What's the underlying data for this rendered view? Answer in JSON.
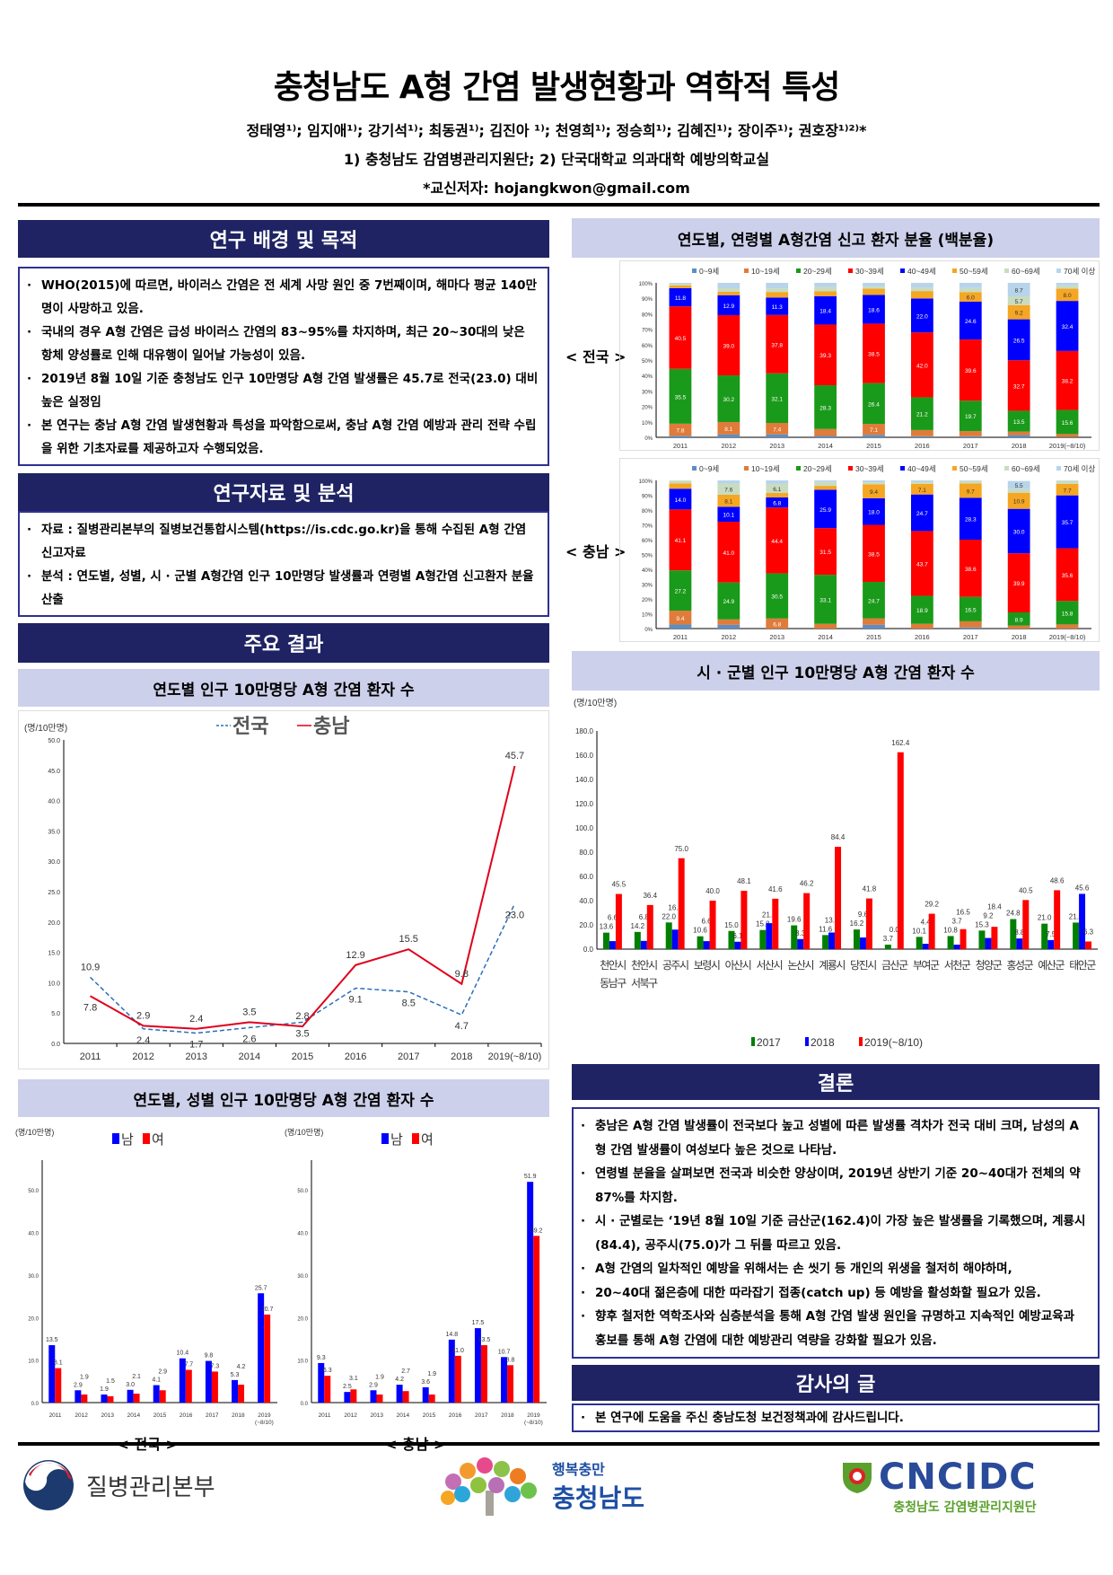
{
  "header": {
    "title": "충청남도 A형 간염 발생현황과 역학적 특성",
    "authors": "정태영¹⁾; 임지애¹⁾; 강기석¹⁾; 최동권¹⁾; 김진아 ¹⁾; 천영희¹⁾; 정승희¹⁾; 김혜진¹⁾; 장이주¹⁾; 권호장¹⁾²⁾*",
    "affiliations": "1) 충청남도 감염병관리지원단; 2) 단국대학교 의과대학 예방의학교실",
    "corresponding": "*교신저자: hojangkwon@gmail.com"
  },
  "sections": {
    "background": {
      "title": "연구 배경 및 목적",
      "items": [
        "WHO(2015)에 따르면, 바이러스 간염은 전 세계 사망 원인 중 7번째이며, 해마다 평균 140만명이 사망하고 있음.",
        "국내의 경우 A형 간염은 급성 바이러스 간염의 83~95%를 차지하며, 최근 20~30대의 낮은 항체 양성률로 인해 대유행이 일어날 가능성이 있음.",
        "2019년 8월 10일 기준 충청남도 인구 10만명당 A형 간염 발생률은 45.7로 전국(23.0) 대비 높은 실정임",
        "본 연구는 충남 A형 간염 발생현황과 특성을 파악함으로써, 충남 A형 간염 예방과 관리 전략 수립을 위한 기초자료를 제공하고자 수행되었음."
      ]
    },
    "methods": {
      "title": "연구자료 및 분석",
      "items": [
        "자료 : 질병관리본부의 질병보건통합시스템(https://is.cdc.go.kr)을 통해 수집된 A형 간염 신고자료",
        "분석 : 연도별, 성별, 시 · 군별 A형간염 인구 10만명당 발생률과 연령별 A형간염 신고환자 분율 산출"
      ]
    },
    "results": {
      "title": "주요 결과"
    },
    "conclusion": {
      "title": "결론",
      "items": [
        "충남은 A형 간염 발생률이 전국보다 높고 성별에 따른 발생률 격차가 전국 대비 크며, 남성의 A형 간염 발생률이 여성보다 높은 것으로 나타남.",
        "연령별 분율을 살펴보면 전국과 비슷한 양상이며, 2019년 상반기 기준 20~40대가 전체의 약 87%를 차지함.",
        "시 · 군별로는 ‘19년 8월 10일 기준 금산군(162.4)이 가장 높은 발생률을 기록했으며, 계룡시(84.4), 공주시(75.0)가 그 뒤를 따르고 있음.",
        "A형 간염의 일차적인 예방을 위해서는 손 씻기 등 개인의 위생을 철저히 해야하며,",
        "20~40대 젊은층에 대한 따라잡기 접종(catch up) 등 예방을 활성화할 필요가 있음.",
        "향후 철저한 역학조사와 심층분석을 통해 A형 간염 발생 원인을 규명하고 지속적인 예방교육과 홍보를 통해 A형 간염에 대한 예방관리 역량을 강화할 필요가 있음."
      ]
    },
    "thanks": {
      "title": "감사의 글",
      "items": [
        "본 연구에 도움을 주신 충남도청 보건정책과에 감사드립니다."
      ]
    }
  },
  "colors": {
    "navy": "#1f2363",
    "band": "#cdd0ea",
    "border": "#2e3192"
  },
  "footer": {
    "logos": [
      {
        "name": "질병관리본부"
      },
      {
        "slogan": "행복충만",
        "name": "충청남도"
      },
      {
        "name": "CNCIDC",
        "sub": "충청남도 감염병관리지원단"
      }
    ]
  },
  "chart_data": [
    {
      "id": "age",
      "type": "bar",
      "stacked": true,
      "title": "연도별, 연령별 A형간염 신고 환자 분율 (백분율)",
      "categories": [
        "2011",
        "2012",
        "2013",
        "2014",
        "2015",
        "2016",
        "2017",
        "2018",
        "2019(~8/10)"
      ],
      "ylim": [
        0,
        100
      ],
      "yticks": [
        "0%",
        "10%",
        "20%",
        "30%",
        "40%",
        "50%",
        "60%",
        "70%",
        "80%",
        "90%",
        "100%"
      ],
      "legend": [
        "0~9세",
        "10~19세",
        "20~29세",
        "30~39세",
        "40~49세",
        "50~59세",
        "60~69세",
        "70세 이상"
      ],
      "colors": [
        "#5b8fc7",
        "#e07b39",
        "#1a9a1a",
        "#ff0000",
        "#0000ff",
        "#f5a623",
        "#c9dcc0",
        "#b8d4ea"
      ],
      "panels": [
        {
          "label": "< 전국 >",
          "series": [
            [
              1.0,
              7.8,
              35.5,
              40.5,
              11.8,
              1.8,
              0.9,
              0.7
            ],
            [
              1.8,
              8.1,
              30.2,
              39.0,
              12.9,
              2.2,
              2.3,
              3.5
            ],
            [
              1.9,
              7.4,
              32.1,
              37.8,
              11.3,
              3.6,
              2.3,
              3.6
            ],
            [
              0.9,
              4.5,
              28.3,
              39.3,
              18.4,
              3.1,
              2.8,
              2.7
            ],
            [
              1.6,
              7.1,
              26.4,
              38.5,
              18.6,
              4.0,
              1.4,
              2.4
            ],
            [
              0.7,
              4.0,
              21.2,
              42.0,
              22.0,
              4.8,
              2.2,
              3.1
            ],
            [
              0.7,
              3.3,
              19.7,
              39.6,
              24.6,
              6.0,
              2.8,
              3.3
            ],
            [
              1.4,
              2.3,
              13.5,
              32.7,
              26.5,
              9.2,
              5.7,
              8.7
            ],
            [
              0.2,
              1.9,
              15.6,
              38.2,
              32.4,
              8.0,
              2.1,
              1.6
            ]
          ]
        },
        {
          "label": "< 충남 >",
          "series": [
            [
              2.7,
              9.4,
              27.2,
              41.1,
              14.0,
              3.6,
              1.9,
              0.0
            ],
            [
              2.5,
              3.7,
              24.9,
              41.0,
              10.1,
              8.1,
              7.6,
              2.1
            ],
            [
              0.0,
              6.8,
              30.5,
              44.4,
              6.8,
              3.0,
              6.1,
              2.4
            ],
            [
              0.0,
              3.2,
              33.1,
              31.5,
              25.9,
              2.6,
              2.7,
              1.0
            ],
            [
              2.5,
              4.3,
              24.7,
              38.5,
              18.0,
              9.4,
              1.3,
              1.3
            ],
            [
              0.0,
              3.2,
              18.9,
              43.7,
              24.7,
              7.1,
              1.5,
              0.9
            ],
            [
              0.8,
              4.1,
              16.5,
              38.6,
              28.3,
              9.7,
              1.6,
              0.4
            ],
            [
              0.0,
              2.0,
              8.9,
              39.9,
              30.0,
              10.9,
              2.4,
              5.5
            ],
            [
              0.0,
              2.8,
              15.8,
              35.6,
              35.7,
              7.7,
              2.2,
              0.2
            ]
          ]
        }
      ]
    },
    {
      "id": "trend",
      "type": "line",
      "title": "연도별 인구 10만명당 A형 간염 환자 수",
      "ylabel": "(명/10만명)",
      "categories": [
        "2011",
        "2012",
        "2013",
        "2014",
        "2015",
        "2016",
        "2017",
        "2018",
        "2019(~8/10)"
      ],
      "ylim": [
        0,
        50
      ],
      "yticks": [
        "0.0",
        "5.0",
        "10.0",
        "15.0",
        "20.0",
        "25.0",
        "30.0",
        "35.0",
        "40.0",
        "45.0",
        "50.0"
      ],
      "series": [
        {
          "name": "전국",
          "color": "#2a6ebb",
          "dashed": true,
          "values": [
            10.9,
            2.4,
            1.7,
            2.6,
            3.5,
            9.1,
            8.5,
            4.7,
            23.0
          ]
        },
        {
          "name": "충남",
          "color": "#e0001b",
          "dashed": false,
          "values": [
            7.8,
            2.9,
            2.4,
            3.5,
            2.8,
            12.9,
            15.5,
            9.8,
            45.7
          ]
        }
      ]
    },
    {
      "id": "city",
      "type": "bar",
      "title": "시 · 군별 인구 10만명당 A형 간염 환자 수",
      "ylabel": "(명/10만명)",
      "categories": [
        "천안시 동남구",
        "천안시 서북구",
        "공주시",
        "보령시",
        "아산시",
        "서산시",
        "논산시",
        "계룡시",
        "당진시",
        "금산군",
        "부여군",
        "서천군",
        "청양군",
        "홍성군",
        "예산군",
        "태안군"
      ],
      "ylim": [
        0,
        180
      ],
      "yticks": [
        "0.0",
        "20.0",
        "40.0",
        "60.0",
        "80.0",
        "100.0",
        "120.0",
        "140.0",
        "160.0",
        "180.0"
      ],
      "series": [
        {
          "name": "2017",
          "color": "#008000",
          "values": [
            13.6,
            14.2,
            22.0,
            10.6,
            15.0,
            15.8,
            19.6,
            11.6,
            16.2,
            3.7,
            10.1,
            10.8,
            15.3,
            24.8,
            21.0,
            21.9
          ]
        },
        {
          "name": "2018",
          "color": "#0000ff",
          "values": [
            6.6,
            6.8,
            16.1,
            6.6,
            6.1,
            21.4,
            8.3,
            13.7,
            9.6,
            0.0,
            4.4,
            3.7,
            9.2,
            8.8,
            7.5,
            45.6
          ]
        },
        {
          "name": "2019(~8/10)",
          "color": "#ff0000",
          "values": [
            45.5,
            36.4,
            75.0,
            40.0,
            48.1,
            41.6,
            46.2,
            84.4,
            41.8,
            162.4,
            29.2,
            16.5,
            18.4,
            40.5,
            48.6,
            6.3
          ]
        }
      ]
    },
    {
      "id": "sex",
      "type": "bar",
      "title": "연도별, 성별 인구 10만명당 A형 간염 환자 수",
      "ylabel": "(명/10만명)",
      "categories": [
        "2011",
        "2012",
        "2013",
        "2014",
        "2015",
        "2016",
        "2017",
        "2018",
        "2019(~8/10)"
      ],
      "ylim": [
        0,
        57
      ],
      "yticks": [
        "0.0",
        "10.0",
        "20.0",
        "30.0",
        "40.0",
        "50.0"
      ],
      "legend": [
        "남",
        "여"
      ],
      "colors": [
        "#0000ff",
        "#ff0000"
      ],
      "panels": [
        {
          "label": "< 전국 >",
          "series": [
            {
              "name": "남",
              "values": [
                13.5,
                2.9,
                1.9,
                3.0,
                4.1,
                10.4,
                9.8,
                5.3,
                25.7
              ]
            },
            {
              "name": "여",
              "values": [
                8.1,
                1.9,
                1.5,
                2.1,
                2.9,
                7.7,
                7.3,
                4.2,
                20.7
              ]
            }
          ]
        },
        {
          "label": "< 충남 >",
          "series": [
            {
              "name": "남",
              "values": [
                9.3,
                2.5,
                2.9,
                4.2,
                3.6,
                14.8,
                17.5,
                10.7,
                51.9
              ]
            },
            {
              "name": "여",
              "values": [
                6.3,
                3.1,
                1.9,
                2.7,
                1.9,
                11.0,
                13.5,
                8.8,
                39.2
              ]
            }
          ]
        }
      ]
    }
  ]
}
